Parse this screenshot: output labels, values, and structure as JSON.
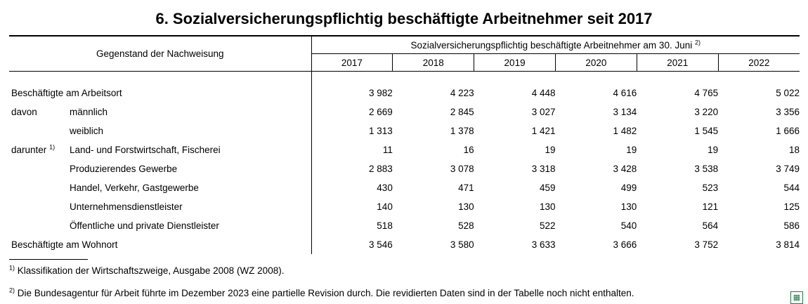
{
  "title": "6. Sozialversicherungspflichtig beschäftigte Arbeitnehmer seit 2017",
  "header": {
    "label_col": "Gegenstand der Nachweisung",
    "group": "Sozialversicherungspflichtig beschäftigte Arbeitnehmer am 30. Juni",
    "group_note": "2)",
    "years": [
      "2017",
      "2018",
      "2019",
      "2020",
      "2021",
      "2022"
    ]
  },
  "rows": [
    {
      "prefix": "Beschäftigte am Arbeitsort",
      "note": "",
      "label": "",
      "values": [
        "3 982",
        "4 223",
        "4 448",
        "4 616",
        "4 765",
        "5 022"
      ]
    },
    {
      "prefix": "davon",
      "note": "",
      "label": "männlich",
      "values": [
        "2 669",
        "2 845",
        "3 027",
        "3 134",
        "3 220",
        "3 356"
      ]
    },
    {
      "prefix": "",
      "note": "",
      "label": "weiblich",
      "values": [
        "1 313",
        "1 378",
        "1 421",
        "1 482",
        "1 545",
        "1 666"
      ]
    },
    {
      "prefix": "darunter",
      "note": "1)",
      "label": "Land- und Forstwirtschaft, Fischerei",
      "values": [
        "11",
        "16",
        "19",
        "19",
        "19",
        "18"
      ]
    },
    {
      "prefix": "",
      "note": "",
      "label": "Produzierendes Gewerbe",
      "values": [
        "2 883",
        "3 078",
        "3 318",
        "3 428",
        "3 538",
        "3 749"
      ]
    },
    {
      "prefix": "",
      "note": "",
      "label": "Handel, Verkehr, Gastgewerbe",
      "values": [
        "430",
        "471",
        "459",
        "499",
        "523",
        "544"
      ]
    },
    {
      "prefix": "",
      "note": "",
      "label": "Unternehmensdienstleister",
      "values": [
        "140",
        "130",
        "130",
        "130",
        "121",
        "125"
      ]
    },
    {
      "prefix": "",
      "note": "",
      "label": "Öffentliche und private Dienstleister",
      "values": [
        "518",
        "528",
        "522",
        "540",
        "564",
        "586"
      ]
    },
    {
      "prefix": "Beschäftigte am Wohnort",
      "note": "",
      "label": "",
      "values": [
        "3 546",
        "3 580",
        "3 633",
        "3 666",
        "3 752",
        "3 814"
      ]
    }
  ],
  "footnotes": [
    {
      "mark": "1)",
      "text": "Klassifikation der Wirtschaftszweige, Ausgabe 2008 (WZ 2008)."
    },
    {
      "mark": "2)",
      "text": "Die Bundesagentur für Arbeit führte im Dezember 2023 eine partielle Revision durch. Die revidierten Daten sind in der Tabelle noch nicht enthalten."
    }
  ],
  "icons": {
    "export": "excel-export-icon",
    "accent": "#1d7a45"
  }
}
